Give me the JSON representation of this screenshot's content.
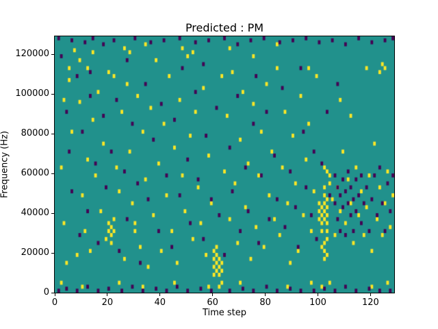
{
  "chart_data": {
    "type": "heatmap",
    "title": "Predicted : PM",
    "xlabel": "Time step",
    "ylabel": "Frequency (Hz)",
    "xlim": [
      0,
      129
    ],
    "ylim": [
      0,
      129000
    ],
    "x_ticks": [
      0,
      20,
      40,
      60,
      80,
      100,
      120
    ],
    "y_ticks": [
      0,
      20000,
      40000,
      60000,
      80000,
      100000,
      120000
    ],
    "grid": false,
    "legend": "none",
    "colors": {
      "background": "#21918c",
      "high": "#fde725",
      "low": "#440154",
      "frame": "#000000"
    },
    "cell_units": {
      "x_step": 1,
      "y_hz": 1000
    },
    "cells_yellow": [
      [
        2,
        62
      ],
      [
        3,
        34
      ],
      [
        3,
        96
      ],
      [
        4,
        14
      ],
      [
        5,
        106
      ],
      [
        5,
        112
      ],
      [
        6,
        80
      ],
      [
        7,
        121
      ],
      [
        8,
        18
      ],
      [
        9,
        95
      ],
      [
        9,
        116
      ],
      [
        10,
        48
      ],
      [
        11,
        30
      ],
      [
        12,
        112
      ],
      [
        12,
        66
      ],
      [
        13,
        20
      ],
      [
        14,
        86
      ],
      [
        14,
        120
      ],
      [
        15,
        58
      ],
      [
        16,
        100
      ],
      [
        17,
        40
      ],
      [
        18,
        74
      ],
      [
        19,
        26
      ],
      [
        20,
        34
      ],
      [
        20,
        30
      ],
      [
        20,
        110
      ],
      [
        21,
        32
      ],
      [
        21,
        28
      ],
      [
        21,
        24
      ],
      [
        22,
        30
      ],
      [
        22,
        36
      ],
      [
        22,
        108
      ],
      [
        23,
        62
      ],
      [
        24,
        50
      ],
      [
        25,
        90
      ],
      [
        26,
        16
      ],
      [
        26,
        122
      ],
      [
        27,
        104
      ],
      [
        28,
        70
      ],
      [
        28,
        120
      ],
      [
        29,
        44
      ],
      [
        30,
        34
      ],
      [
        30,
        30
      ],
      [
        31,
        98
      ],
      [
        32,
        22
      ],
      [
        33,
        80
      ],
      [
        34,
        56
      ],
      [
        34,
        124
      ],
      [
        35,
        12
      ],
      [
        36,
        92
      ],
      [
        37,
        38
      ],
      [
        38,
        116
      ],
      [
        39,
        64
      ],
      [
        40,
        20
      ],
      [
        41,
        84
      ],
      [
        42,
        48
      ],
      [
        43,
        108
      ],
      [
        44,
        30
      ],
      [
        45,
        72
      ],
      [
        46,
        14
      ],
      [
        47,
        96
      ],
      [
        48,
        58
      ],
      [
        48,
        122
      ],
      [
        49,
        40
      ],
      [
        50,
        118
      ],
      [
        51,
        78
      ],
      [
        52,
        26
      ],
      [
        52,
        120
      ],
      [
        53,
        90
      ],
      [
        54,
        52
      ],
      [
        55,
        34
      ],
      [
        56,
        102
      ],
      [
        57,
        18
      ],
      [
        58,
        68
      ],
      [
        59,
        44
      ],
      [
        60,
        12
      ],
      [
        60,
        16
      ],
      [
        60,
        8
      ],
      [
        60,
        20
      ],
      [
        61,
        14
      ],
      [
        61,
        10
      ],
      [
        61,
        18
      ],
      [
        61,
        22
      ],
      [
        62,
        12
      ],
      [
        62,
        8
      ],
      [
        62,
        16
      ],
      [
        63,
        10
      ],
      [
        63,
        14
      ],
      [
        63,
        108
      ],
      [
        64,
        60
      ],
      [
        65,
        88
      ],
      [
        66,
        36
      ],
      [
        66,
        122
      ],
      [
        67,
        110
      ],
      [
        68,
        54
      ],
      [
        69,
        24
      ],
      [
        70,
        76
      ],
      [
        71,
        100
      ],
      [
        72,
        42
      ],
      [
        73,
        64
      ],
      [
        74,
        16
      ],
      [
        75,
        94
      ],
      [
        75,
        118
      ],
      [
        76,
        32
      ],
      [
        77,
        58
      ],
      [
        78,
        80
      ],
      [
        79,
        22
      ],
      [
        80,
        104
      ],
      [
        81,
        48
      ],
      [
        82,
        70
      ],
      [
        83,
        36
      ],
      [
        84,
        112
      ],
      [
        84,
        124
      ],
      [
        85,
        28
      ],
      [
        86,
        62
      ],
      [
        87,
        90
      ],
      [
        88,
        44
      ],
      [
        89,
        14
      ],
      [
        90,
        78
      ],
      [
        91,
        54
      ],
      [
        92,
        20
      ],
      [
        93,
        98
      ],
      [
        94,
        38
      ],
      [
        95,
        66
      ],
      [
        96,
        84
      ],
      [
        96,
        112
      ],
      [
        97,
        30
      ],
      [
        98,
        50
      ],
      [
        99,
        108
      ],
      [
        100,
        40
      ],
      [
        100,
        36
      ],
      [
        100,
        44
      ],
      [
        101,
        38
      ],
      [
        101,
        42
      ],
      [
        101,
        34
      ],
      [
        101,
        30
      ],
      [
        101,
        22
      ],
      [
        102,
        36
      ],
      [
        102,
        40
      ],
      [
        102,
        44
      ],
      [
        102,
        48
      ],
      [
        102,
        52
      ],
      [
        102,
        24
      ],
      [
        102,
        20
      ],
      [
        102,
        16
      ],
      [
        102,
        62
      ],
      [
        103,
        38
      ],
      [
        103,
        42
      ],
      [
        103,
        46
      ],
      [
        103,
        34
      ],
      [
        103,
        30
      ],
      [
        103,
        26
      ],
      [
        103,
        18
      ],
      [
        103,
        60
      ],
      [
        104,
        58
      ],
      [
        104,
        54
      ],
      [
        105,
        46
      ],
      [
        106,
        28
      ],
      [
        107,
        52
      ],
      [
        108,
        40
      ],
      [
        108,
        96
      ],
      [
        109,
        70
      ],
      [
        110,
        34
      ],
      [
        111,
        56
      ],
      [
        112,
        44
      ],
      [
        112,
        88
      ],
      [
        113,
        24
      ],
      [
        114,
        62
      ],
      [
        115,
        38
      ],
      [
        116,
        50
      ],
      [
        117,
        28
      ],
      [
        118,
        42
      ],
      [
        118,
        112
      ],
      [
        119,
        58
      ],
      [
        120,
        20
      ],
      [
        121,
        74
      ],
      [
        122,
        36
      ],
      [
        123,
        52
      ],
      [
        123,
        110
      ],
      [
        124,
        28
      ],
      [
        124,
        114
      ],
      [
        125,
        44
      ],
      [
        125,
        112
      ],
      [
        126,
        60
      ],
      [
        127,
        32
      ],
      [
        128,
        48
      ],
      [
        2,
        4
      ],
      [
        10,
        2
      ],
      [
        24,
        4
      ],
      [
        33,
        2
      ],
      [
        45,
        4
      ],
      [
        58,
        2
      ],
      [
        62,
        2
      ],
      [
        63,
        4
      ],
      [
        70,
        4
      ],
      [
        88,
        2
      ],
      [
        97,
        4
      ],
      [
        101,
        2
      ],
      [
        104,
        4
      ],
      [
        120,
        2
      ],
      [
        126,
        4
      ]
    ],
    "cells_purple": [
      [
        1,
        127
      ],
      [
        6,
        126
      ],
      [
        11,
        125
      ],
      [
        14,
        127
      ],
      [
        18,
        124
      ],
      [
        22,
        126
      ],
      [
        30,
        127
      ],
      [
        36,
        125
      ],
      [
        41,
        126
      ],
      [
        47,
        127
      ],
      [
        53,
        125
      ],
      [
        58,
        126
      ],
      [
        64,
        127
      ],
      [
        69,
        124
      ],
      [
        74,
        126
      ],
      [
        79,
        127
      ],
      [
        85,
        125
      ],
      [
        90,
        126
      ],
      [
        95,
        127
      ],
      [
        100,
        125
      ],
      [
        105,
        126
      ],
      [
        110,
        124
      ],
      [
        115,
        127
      ],
      [
        120,
        125
      ],
      [
        125,
        126
      ],
      [
        128,
        127
      ],
      [
        2,
        118
      ],
      [
        4,
        90
      ],
      [
        5,
        70
      ],
      [
        6,
        50
      ],
      [
        8,
        108
      ],
      [
        9,
        28
      ],
      [
        10,
        80
      ],
      [
        12,
        40
      ],
      [
        13,
        98
      ],
      [
        13,
        110
      ],
      [
        15,
        64
      ],
      [
        16,
        24
      ],
      [
        18,
        88
      ],
      [
        19,
        52
      ],
      [
        21,
        70
      ],
      [
        23,
        96
      ],
      [
        24,
        20
      ],
      [
        26,
        60
      ],
      [
        27,
        36
      ],
      [
        27,
        116
      ],
      [
        29,
        84
      ],
      [
        31,
        54
      ],
      [
        32,
        14
      ],
      [
        34,
        104
      ],
      [
        35,
        46
      ],
      [
        37,
        76
      ],
      [
        39,
        30
      ],
      [
        40,
        94
      ],
      [
        42,
        58
      ],
      [
        44,
        22
      ],
      [
        45,
        86
      ],
      [
        47,
        48
      ],
      [
        48,
        112
      ],
      [
        50,
        66
      ],
      [
        51,
        34
      ],
      [
        53,
        100
      ],
      [
        54,
        56
      ],
      [
        56,
        26
      ],
      [
        56,
        114
      ],
      [
        57,
        78
      ],
      [
        59,
        46
      ],
      [
        61,
        92
      ],
      [
        62,
        38
      ],
      [
        64,
        18
      ],
      [
        66,
        72
      ],
      [
        67,
        50
      ],
      [
        69,
        98
      ],
      [
        70,
        30
      ],
      [
        72,
        62
      ],
      [
        73,
        40
      ],
      [
        75,
        84
      ],
      [
        76,
        108
      ],
      [
        77,
        24
      ],
      [
        78,
        58
      ],
      [
        80,
        90
      ],
      [
        81,
        36
      ],
      [
        83,
        68
      ],
      [
        84,
        46
      ],
      [
        86,
        102
      ],
      [
        87,
        32
      ],
      [
        89,
        60
      ],
      [
        91,
        42
      ],
      [
        92,
        22
      ],
      [
        93,
        112
      ],
      [
        94,
        80
      ],
      [
        95,
        52
      ],
      [
        97,
        38
      ],
      [
        98,
        70
      ],
      [
        99,
        26
      ],
      [
        101,
        64
      ],
      [
        103,
        90
      ],
      [
        104,
        48
      ],
      [
        106,
        58
      ],
      [
        106,
        44
      ],
      [
        107,
        36
      ],
      [
        107,
        52
      ],
      [
        107,
        104
      ],
      [
        108,
        30
      ],
      [
        108,
        48
      ],
      [
        109,
        42
      ],
      [
        109,
        56
      ],
      [
        110,
        50
      ],
      [
        110,
        28
      ],
      [
        111,
        44
      ],
      [
        111,
        60
      ],
      [
        112,
        38
      ],
      [
        112,
        52
      ],
      [
        113,
        46
      ],
      [
        113,
        30
      ],
      [
        114,
        56
      ],
      [
        114,
        40
      ],
      [
        115,
        48
      ],
      [
        116,
        34
      ],
      [
        116,
        58
      ],
      [
        117,
        44
      ],
      [
        118,
        52
      ],
      [
        119,
        30
      ],
      [
        120,
        46
      ],
      [
        121,
        58
      ],
      [
        122,
        38
      ],
      [
        123,
        62
      ],
      [
        124,
        44
      ],
      [
        125,
        30
      ],
      [
        126,
        54
      ],
      [
        127,
        40
      ],
      [
        128,
        58
      ],
      [
        1,
        0
      ],
      [
        4,
        1
      ],
      [
        8,
        0
      ],
      [
        12,
        2
      ],
      [
        16,
        0
      ],
      [
        20,
        1
      ],
      [
        25,
        0
      ],
      [
        29,
        2
      ],
      [
        33,
        0
      ],
      [
        38,
        1
      ],
      [
        42,
        0
      ],
      [
        46,
        2
      ],
      [
        50,
        0
      ],
      [
        55,
        1
      ],
      [
        59,
        0
      ],
      [
        66,
        0
      ],
      [
        71,
        1
      ],
      [
        75,
        0
      ],
      [
        80,
        2
      ],
      [
        84,
        0
      ],
      [
        89,
        1
      ],
      [
        93,
        0
      ],
      [
        98,
        0
      ],
      [
        102,
        1
      ],
      [
        106,
        0
      ],
      [
        110,
        2
      ],
      [
        114,
        0
      ],
      [
        119,
        1
      ],
      [
        123,
        0
      ],
      [
        127,
        0
      ]
    ]
  }
}
